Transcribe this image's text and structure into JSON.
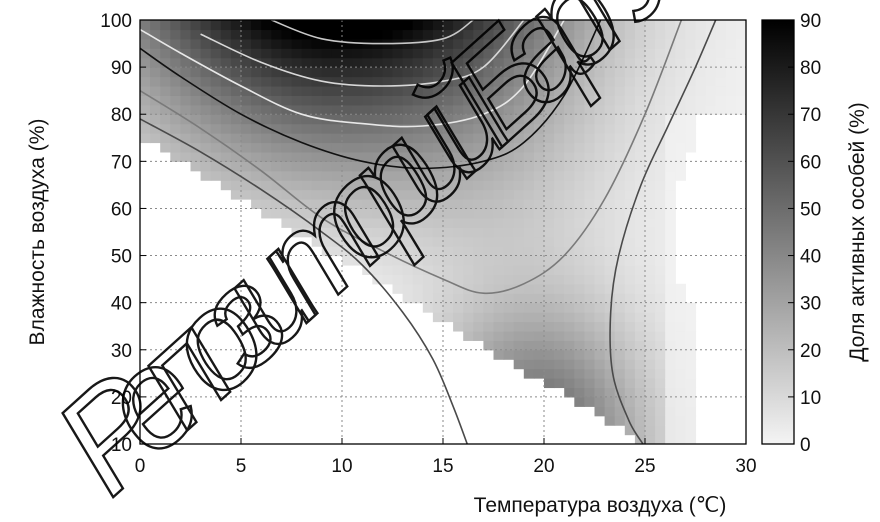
{
  "chart_data": {
    "type": "heatmap",
    "title": "",
    "xlabel": "Температура воздуха (℃)",
    "ylabel": "Влажность воздуха (%)",
    "colorbar_label": "Доля активных особей (%)",
    "xlim": [
      0,
      30
    ],
    "ylim": [
      10,
      100
    ],
    "clim": [
      0,
      90
    ],
    "x_ticks": [
      0,
      5,
      10,
      15,
      20,
      25,
      30
    ],
    "y_ticks": [
      10,
      20,
      30,
      40,
      50,
      60,
      70,
      80,
      90,
      100
    ],
    "colorbar_ticks": [
      0,
      10,
      20,
      30,
      40,
      50,
      60,
      70,
      80,
      90
    ],
    "grid": true,
    "colormap": "white-to-black",
    "contour_levels": [
      10,
      20,
      30,
      50,
      60,
      70,
      80
    ],
    "contours": [
      {
        "level": 10,
        "color": "#4a4a4a",
        "x": [
          0,
          3,
          6,
          9,
          11,
          13,
          14.5,
          15.5,
          16.2
        ],
        "y": [
          79,
          72,
          64,
          55,
          48,
          38,
          28,
          18,
          10
        ]
      },
      {
        "level": 10,
        "color": "#4a4a4a",
        "x": [
          28.5,
          27.5,
          26.2,
          24.8,
          23.7,
          23.3,
          23.4,
          24.2,
          24.9
        ],
        "y": [
          100,
          90,
          78,
          65,
          50,
          38,
          25,
          15,
          10
        ]
      },
      {
        "level": 20,
        "color": "#7a7a7a",
        "x": [
          0,
          3,
          6,
          9,
          12,
          15,
          17,
          19,
          21,
          23,
          25,
          26.8
        ],
        "y": [
          85,
          77,
          68,
          58,
          51,
          45,
          42,
          44,
          50,
          62,
          80,
          100
        ]
      },
      {
        "level": 50,
        "color": "#111111",
        "x": [
          0,
          2,
          5,
          8,
          11,
          14,
          17,
          19,
          21,
          22.8
        ],
        "y": [
          94,
          88,
          80,
          74,
          70,
          68.5,
          70,
          74,
          84,
          100
        ]
      },
      {
        "level": 60,
        "color": "#e8e8e8",
        "x": [
          0,
          2,
          5,
          8,
          11,
          14,
          17,
          19,
          21
        ],
        "y": [
          98,
          93,
          86,
          80,
          78,
          77.5,
          80,
          86,
          100
        ]
      },
      {
        "level": 70,
        "color": "#d8d8d8",
        "x": [
          3,
          6,
          9,
          12,
          15,
          17,
          19
        ],
        "y": [
          97,
          91,
          87,
          86,
          87,
          90,
          100
        ]
      },
      {
        "level": 80,
        "color": "#c8c8c8",
        "x": [
          6.5,
          9,
          12,
          15,
          16.5
        ],
        "y": [
          100,
          96,
          95,
          96,
          100
        ]
      }
    ]
  },
  "watermark": {
    "text": "Репозиторий БарГУ"
  }
}
